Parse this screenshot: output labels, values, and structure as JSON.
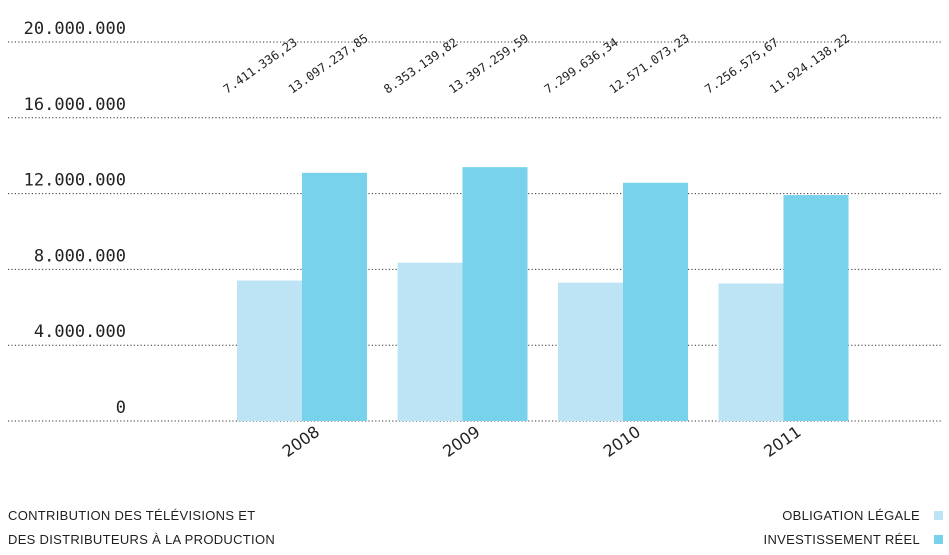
{
  "chart_data": {
    "type": "bar",
    "title_lines": [
      "CONTRIBUTION DES TÉLÉVISIONS ET",
      "DES DISTRIBUTEURS À LA PRODUCTION"
    ],
    "categories": [
      "2008",
      "2009",
      "2010",
      "2011"
    ],
    "series": [
      {
        "name": "OBLIGATION LÉGALE",
        "color": "#bde4f4",
        "values": [
          7411336.23,
          8353139.82,
          7299636.34,
          7256575.67
        ],
        "labels": [
          "7.411.336,23",
          "8.353.139,82",
          "7.299.636,34",
          "7.256.575,67"
        ]
      },
      {
        "name": "INVESTISSEMENT RÉEL",
        "color": "#79d2ec",
        "values": [
          13097237.85,
          13397259.59,
          12571073.23,
          11924138.22
        ],
        "labels": [
          "13.097.237,85",
          "13.397.259,59",
          "12.571.073,23",
          "11.924.138,22"
        ]
      }
    ],
    "y_ticks": [
      {
        "value": 0,
        "label": "0"
      },
      {
        "value": 4000000,
        "label": "4.000.000"
      },
      {
        "value": 8000000,
        "label": "8.000.000"
      },
      {
        "value": 12000000,
        "label": "12.000.000"
      },
      {
        "value": 16000000,
        "label": "16.000.000"
      },
      {
        "value": 20000000,
        "label": "20.000.000"
      }
    ],
    "ylim": [
      0,
      20000000
    ],
    "grid": true,
    "gridline_style": "dotted",
    "legend_position": "bottom-right"
  }
}
